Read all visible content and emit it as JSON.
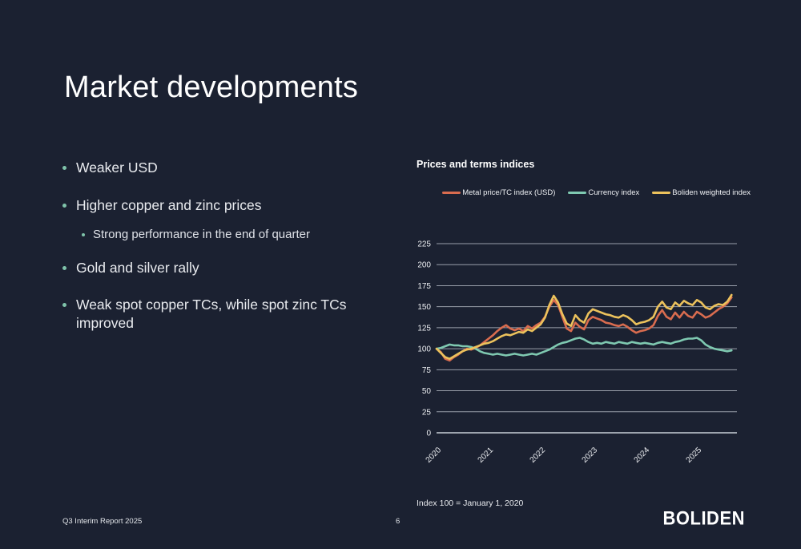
{
  "slide": {
    "title": "Market developments",
    "bullets": [
      {
        "text": "Weaker USD",
        "level": 1
      },
      {
        "text": "Higher copper and zinc prices",
        "level": 1
      },
      {
        "text": "Strong performance in the end of quarter",
        "level": 2
      },
      {
        "text": "Gold and silver rally",
        "level": 1
      },
      {
        "text": "Weak spot copper TCs, while spot zinc TCs improved",
        "level": 1
      }
    ],
    "footnote": "Index 100 = January 1, 2020",
    "footer": {
      "left": "Q3 Interim Report 2025",
      "page_number": "6",
      "logo": "BOLIDEN"
    }
  },
  "colors": {
    "background": "#1b2131",
    "text": "#eceef2",
    "bullet_dot": "#7fc3aa",
    "gridline": "#b9bfc9",
    "metal_line": "#d96c4f",
    "currency_line": "#7fc9b1",
    "boliden_line": "#ecc25c"
  },
  "chart_data": {
    "type": "line",
    "title": "Prices and terms indices",
    "footnote": "Index 100 = January 1, 2020",
    "x_start": "2020-01",
    "x_end": "2025-09",
    "frequency": "monthly",
    "x_tick_labels": [
      "2020",
      "2021",
      "2022",
      "2023",
      "2024",
      "2025"
    ],
    "y_ticks": [
      0,
      25,
      50,
      75,
      100,
      125,
      150,
      175,
      200,
      225
    ],
    "ylim": [
      0,
      225
    ],
    "grid": true,
    "legend_position": "top",
    "series": [
      {
        "name": "Metal price/TC index (USD)",
        "color": "#d96c4f",
        "values": [
          100,
          96,
          88,
          86,
          90,
          93,
          97,
          100,
          99,
          101,
          104,
          108,
          112,
          116,
          121,
          125,
          128,
          124,
          122,
          124,
          121,
          127,
          124,
          128,
          131,
          138,
          150,
          158,
          152,
          138,
          124,
          121,
          131,
          126,
          123,
          134,
          138,
          136,
          134,
          131,
          130,
          128,
          127,
          129,
          126,
          122,
          119,
          121,
          122,
          124,
          128,
          139,
          146,
          138,
          135,
          143,
          137,
          144,
          139,
          137,
          144,
          141,
          137,
          139,
          143,
          147,
          150,
          154,
          161
        ]
      },
      {
        "name": "Currency index",
        "color": "#7fc9b1",
        "values": [
          100,
          101,
          103,
          105,
          104,
          104,
          103,
          103,
          102,
          100,
          97,
          95,
          94,
          93,
          94,
          93,
          92,
          93,
          94,
          93,
          92,
          93,
          94,
          93,
          95,
          97,
          99,
          102,
          105,
          107,
          108,
          110,
          112,
          113,
          111,
          108,
          106,
          107,
          106,
          108,
          107,
          106,
          108,
          107,
          106,
          108,
          107,
          106,
          107,
          106,
          105,
          107,
          108,
          107,
          106,
          108,
          109,
          111,
          112,
          112,
          113,
          110,
          105,
          102,
          100,
          99,
          98,
          97,
          98
        ]
      },
      {
        "name": "Boliden weighted index",
        "color": "#ecc25c",
        "values": [
          100,
          95,
          90,
          88,
          91,
          94,
          97,
          99,
          100,
          102,
          104,
          106,
          107,
          109,
          112,
          115,
          117,
          116,
          118,
          120,
          119,
          123,
          121,
          125,
          129,
          137,
          152,
          163,
          155,
          141,
          130,
          127,
          140,
          134,
          131,
          142,
          147,
          145,
          143,
          141,
          140,
          138,
          137,
          140,
          138,
          134,
          129,
          131,
          132,
          134,
          138,
          150,
          156,
          149,
          147,
          155,
          151,
          157,
          154,
          152,
          158,
          155,
          149,
          147,
          151,
          153,
          152,
          156,
          164
        ]
      }
    ]
  }
}
